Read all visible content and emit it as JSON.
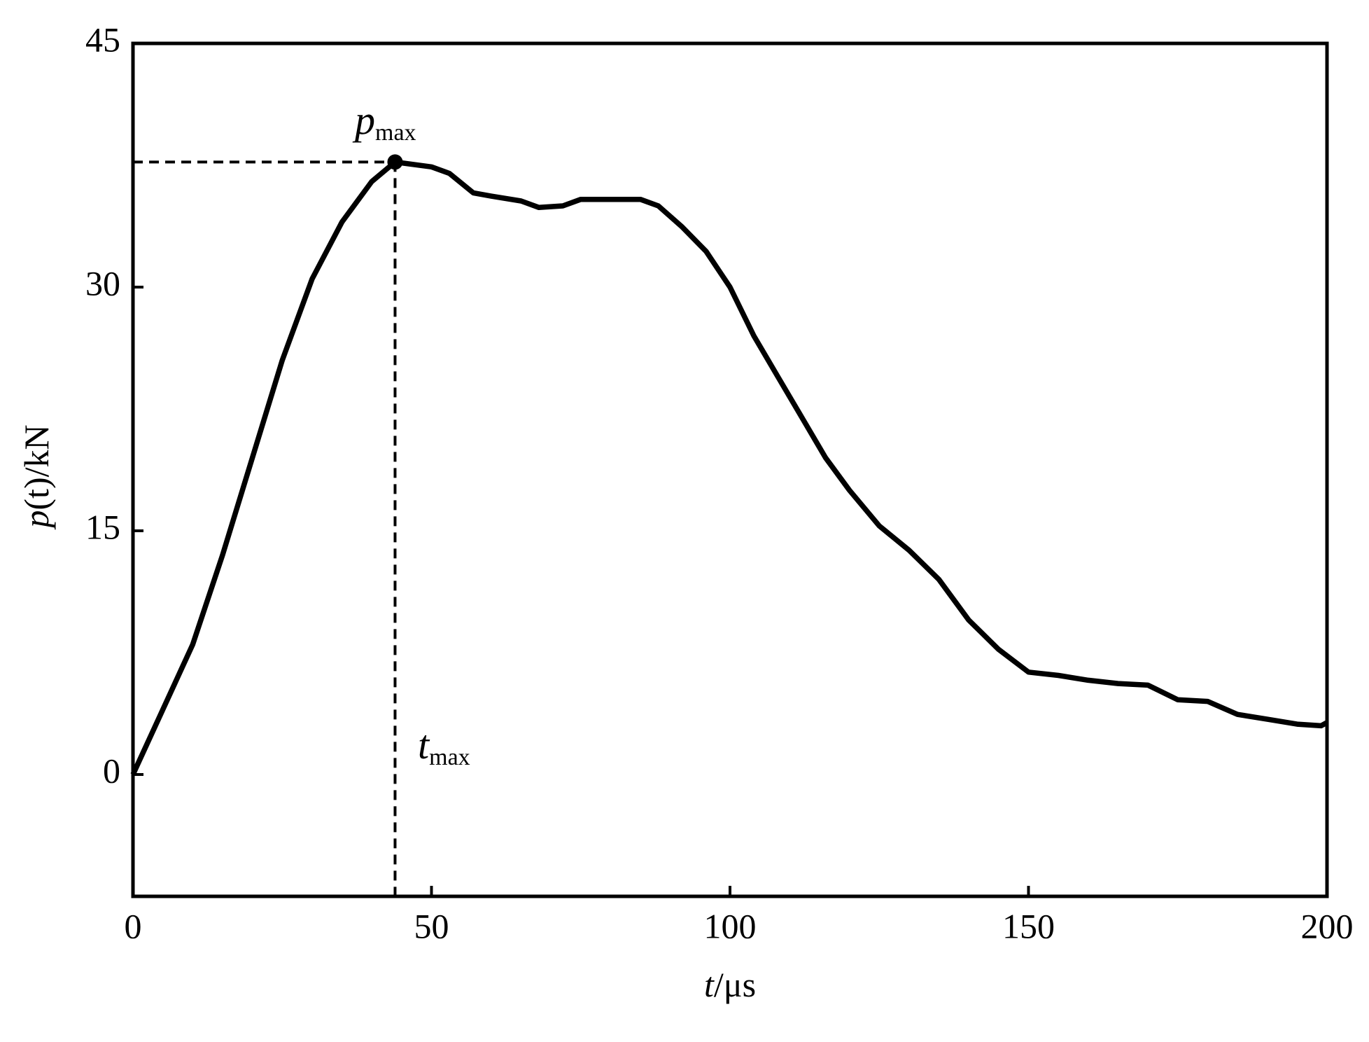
{
  "chart_data": {
    "type": "line",
    "xlabel": {
      "italic": "t",
      "rest": "/μs"
    },
    "ylabel": {
      "italic": "p",
      "rest": "(t)/kN"
    },
    "x": [
      0,
      5,
      10,
      15,
      20,
      25,
      30,
      35,
      40,
      43.9,
      50,
      53,
      57,
      60,
      65,
      68,
      72,
      75,
      80,
      85,
      88,
      92,
      96,
      100,
      104,
      108,
      112,
      116,
      120,
      125,
      130,
      135,
      140,
      145,
      150,
      155,
      160,
      165,
      170,
      175,
      180,
      185,
      190,
      195,
      199,
      200
    ],
    "series": [
      {
        "name": "p(t)",
        "color": "#000000",
        "values": [
          0,
          4,
          8,
          13.5,
          19.5,
          25.5,
          30.5,
          34,
          36.5,
          37.7,
          37.4,
          37,
          35.8,
          35.6,
          35.3,
          34.9,
          35,
          35.4,
          35.4,
          35.4,
          35,
          33.7,
          32.2,
          30,
          27,
          24.5,
          22,
          19.5,
          17.5,
          15.3,
          13.8,
          12,
          9.5,
          7.7,
          6.3,
          6.1,
          5.8,
          5.6,
          5.5,
          4.6,
          4.5,
          3.7,
          3.4,
          3.1,
          3.0,
          3.2
        ]
      }
    ],
    "peak": {
      "x": 43.9,
      "y": 37.7
    },
    "annotations": [
      {
        "text": "p",
        "subscript": "max"
      },
      {
        "text": "t",
        "subscript": "max"
      }
    ],
    "xlim": [
      0,
      200
    ],
    "xticks": [
      0,
      50,
      100,
      150,
      200
    ],
    "ylim": [
      -7.5,
      45
    ],
    "yticks": [
      0,
      15,
      30,
      45
    ],
    "grid": false
  }
}
